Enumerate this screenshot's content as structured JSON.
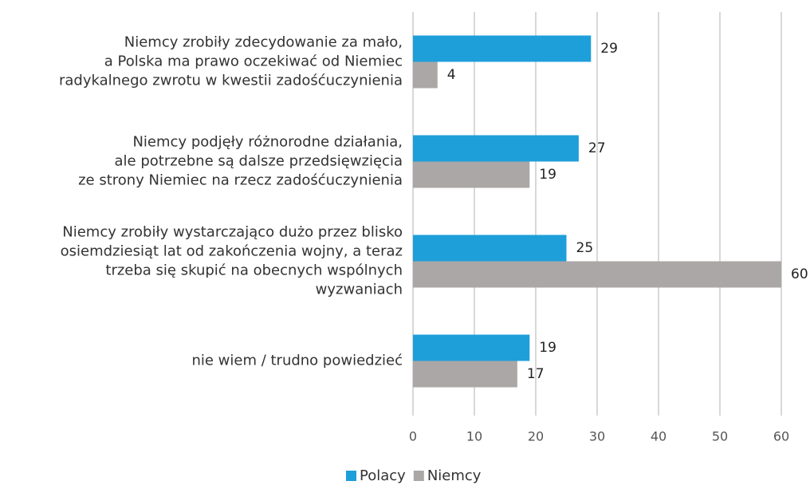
{
  "chart_data": {
    "type": "bar",
    "orientation": "horizontal",
    "categories": [
      "Niemcy zrobiły zdecydowanie za mało,\na Polska ma prawo oczekiwać od Niemiec\nradykalnego zwrotu w kwestii zadośćuczynienia",
      "Niemcy podjęły różnorodne działania,\nale potrzebne są dalsze przedsięwzięcia\nze strony Niemiec na rzecz zadośćuczynienia",
      "Niemcy zrobiły wystarczająco dużo przez blisko\nosiemdziesiąt lat od zakończenia wojny, a teraz\ntrzeba się skupić na obecnych wspólnych\nwyzwaniach",
      "nie wiem / trudno powiedzieć"
    ],
    "series": [
      {
        "name": "Polacy",
        "color": "#1e9fda",
        "values": [
          29,
          27,
          25,
          19
        ]
      },
      {
        "name": "Niemcy",
        "color": "#aba7a6",
        "values": [
          4,
          19,
          60,
          17
        ]
      }
    ],
    "xlim": [
      0,
      60
    ],
    "xticks": [
      0,
      10,
      20,
      30,
      40,
      50,
      60
    ],
    "grid": true,
    "legend": "bottom"
  }
}
